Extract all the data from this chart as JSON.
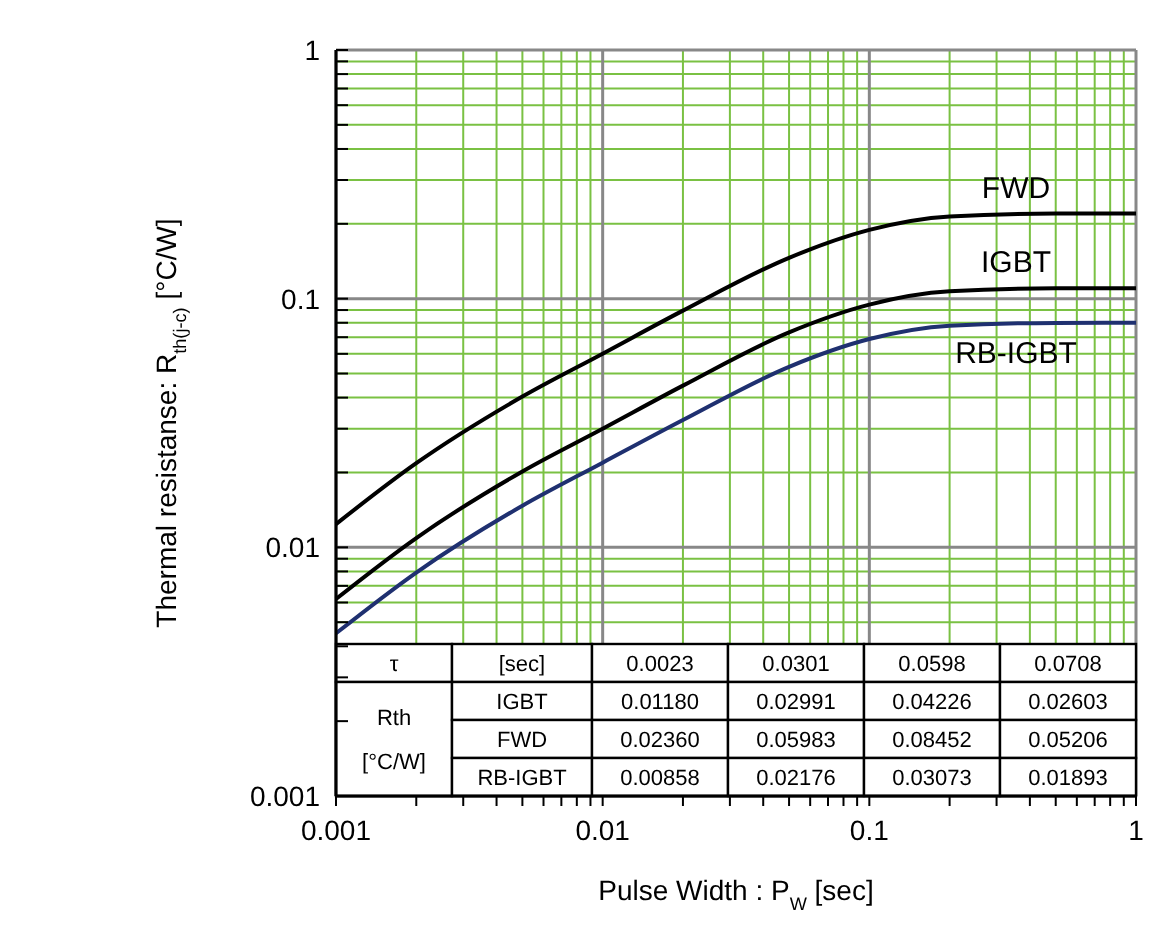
{
  "chart_data": {
    "type": "line",
    "xlabel": "Pulse Width : P$_{W}$ [sec]",
    "ylabel": "Thermal resistanse: R$_{th(j-c)}$ [°C/W]",
    "x": [
      0.001,
      0.002,
      0.005,
      0.01,
      0.02,
      0.05,
      0.1,
      0.2,
      0.5,
      1
    ],
    "series": [
      {
        "name": "FWD",
        "color": "#000000",
        "values": [
          0.0124,
          0.0218,
          0.0404,
          0.0601,
          0.0895,
          0.146,
          0.189,
          0.214,
          0.22,
          0.22
        ]
      },
      {
        "name": "IGBT",
        "color": "#000000",
        "values": [
          0.0062,
          0.0109,
          0.0202,
          0.03,
          0.0447,
          0.0732,
          0.0946,
          0.107,
          0.11,
          0.11
        ]
      },
      {
        "name": "RB-IGBT",
        "color": "#1f3070",
        "values": [
          0.00451,
          0.00792,
          0.0147,
          0.0219,
          0.0325,
          0.0532,
          0.0688,
          0.0778,
          0.0799,
          0.08
        ]
      }
    ],
    "xlim": [
      0.001,
      1
    ],
    "ylim": [
      0.001,
      1
    ],
    "xticks": [
      0.001,
      {
        "value": 0.002,
        "label": null
      },
      {
        "value": 0.003,
        "label": null
      },
      {
        "value": 0.004,
        "label": null
      },
      {
        "value": 0.005,
        "label": null
      },
      {
        "value": 0.006,
        "label": null
      },
      {
        "value": 0.007,
        "label": null
      },
      {
        "value": 0.008,
        "label": null
      },
      {
        "value": 0.009,
        "label": null
      },
      0.01,
      {
        "value": 0.02,
        "label": null
      },
      {
        "value": 0.03,
        "label": null
      },
      {
        "value": 0.04,
        "label": null
      },
      {
        "value": 0.05,
        "label": null
      },
      {
        "value": 0.06,
        "label": null
      },
      {
        "value": 0.07,
        "label": null
      },
      {
        "value": 0.08,
        "label": null
      },
      {
        "value": 0.09,
        "label": null
      },
      0.1,
      {
        "value": 0.2,
        "label": null
      },
      {
        "value": 0.3,
        "label": null
      },
      {
        "value": 0.4,
        "label": null
      },
      {
        "value": 0.5,
        "label": null
      },
      {
        "value": 0.6,
        "label": null
      },
      {
        "value": 0.7,
        "label": null
      },
      {
        "value": 0.8,
        "label": null
      },
      {
        "value": 0.9,
        "label": null
      },
      1
    ],
    "yticks": [
      0.001,
      {
        "value": 0.002,
        "label": null
      },
      {
        "value": 0.003,
        "label": null
      },
      {
        "value": 0.004,
        "label": null
      },
      {
        "value": 0.005,
        "label": null
      },
      {
        "value": 0.006,
        "label": null
      },
      {
        "value": 0.007,
        "label": null
      },
      {
        "value": 0.008,
        "label": null
      },
      {
        "value": 0.009,
        "label": null
      },
      0.01,
      {
        "value": 0.02,
        "label": null
      },
      {
        "value": 0.03,
        "label": null
      },
      {
        "value": 0.04,
        "label": null
      },
      {
        "value": 0.05,
        "label": null
      },
      {
        "value": 0.06,
        "label": null
      },
      {
        "value": 0.07,
        "label": null
      },
      {
        "value": 0.08,
        "label": null
      },
      {
        "value": 0.09,
        "label": null
      },
      0.1,
      {
        "value": 0.2,
        "label": null
      },
      {
        "value": 0.3,
        "label": null
      },
      {
        "value": 0.4,
        "label": null
      },
      {
        "value": 0.5,
        "label": null
      },
      {
        "value": 0.6,
        "label": null
      },
      {
        "value": 0.7,
        "label": null
      },
      {
        "value": 0.8,
        "label": null
      },
      {
        "value": 0.9,
        "label": null
      },
      1
    ],
    "legend": false,
    "log": "xy",
    "grid": true,
    "line_style": "solid",
    "marker": "none",
    "annotations": [
      "τ",
      "[sec]",
      "0.0023",
      "0.0301",
      "0.0598",
      "0.0708",
      "Rth\n[°C/W]",
      "IGBT",
      "0.01180",
      "0.02991",
      "0.04226",
      "0.02603",
      "FWD",
      "0.02360",
      "0.05983",
      "0.08452",
      "0.05206",
      "RB-IGBT",
      "0.00858",
      "0.02176",
      "0.03073",
      "0.01893"
    ]
  }
}
